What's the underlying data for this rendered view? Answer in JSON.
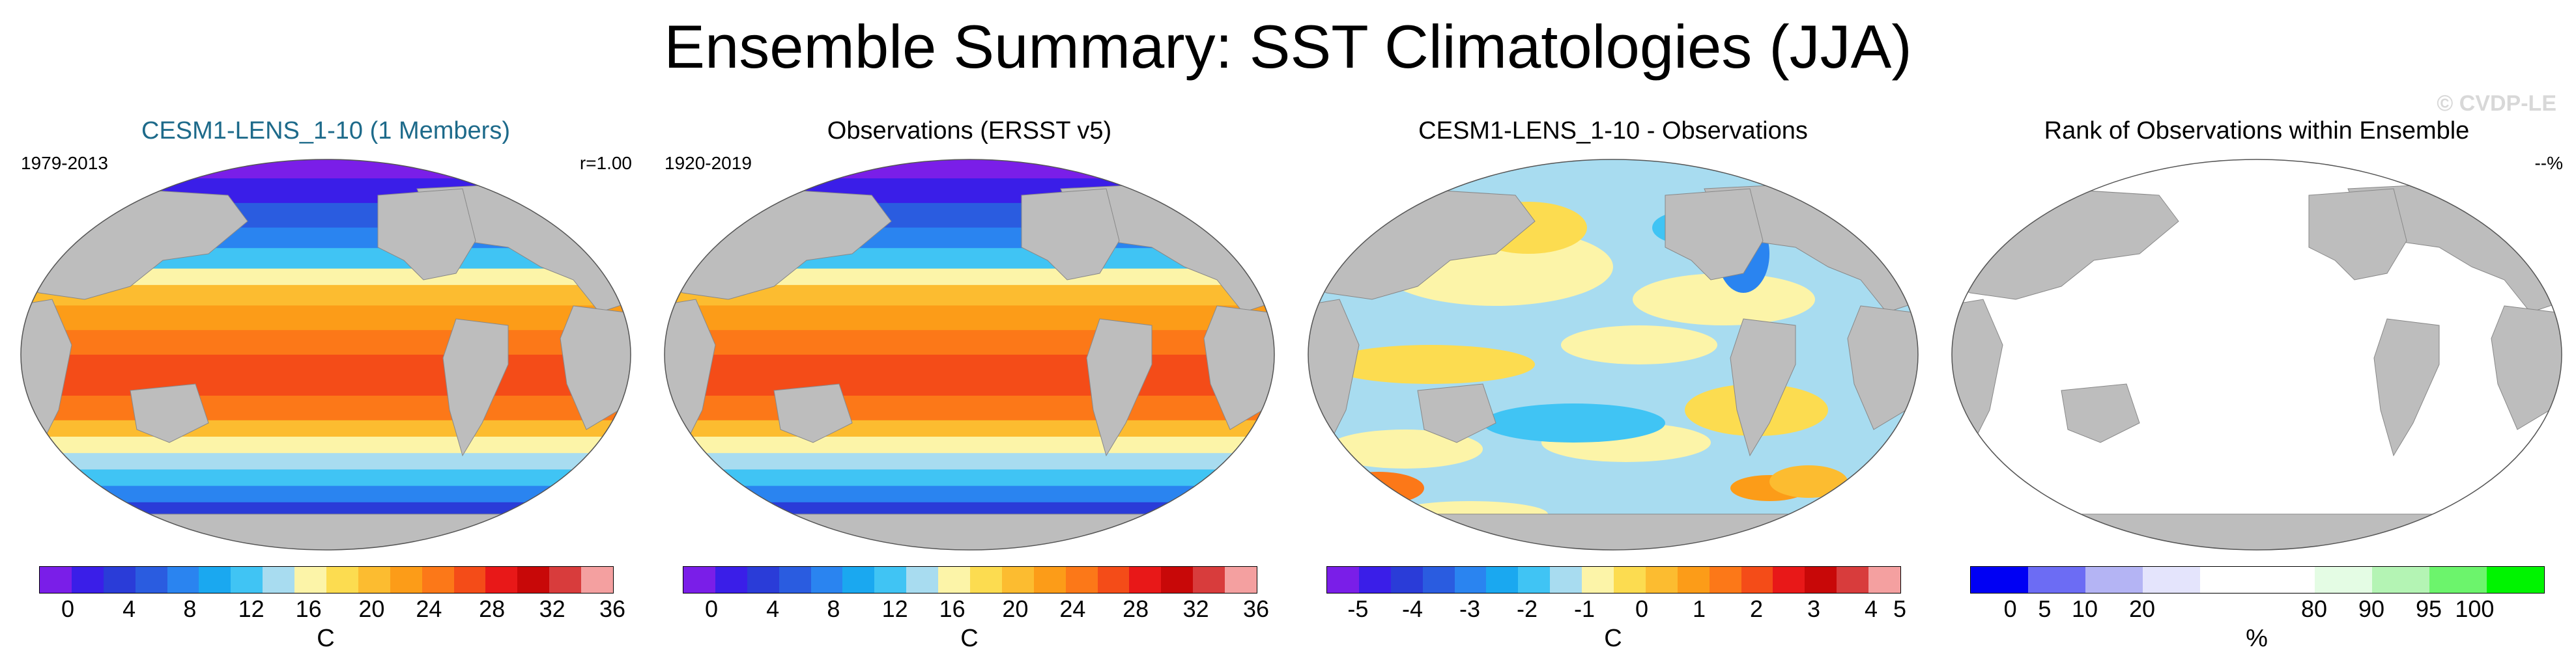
{
  "title": "Ensemble Summary: SST Climatologies (JJA)",
  "watermark": "© CVDP-LE",
  "panels": [
    {
      "title": "CESM1-LENS_1-10 (1 Members)",
      "left_note": "1979-2013",
      "right_note": "r=1.00",
      "unit": "C",
      "map_type": "sst",
      "colorbar": [
        "#7a1ee8",
        "#3a1ee8",
        "#2a3cd8",
        "#2a5ce0",
        "#2a84f0",
        "#1aa8f0",
        "#40c4f4",
        "#a8dcf0",
        "#fcf4a8",
        "#fcdc50",
        "#fcbc30",
        "#fc9c18",
        "#fc7818",
        "#f44c18",
        "#e81818",
        "#c80808",
        "#d83c3c",
        "#f4a0a0"
      ],
      "ticks": [
        "0",
        "4",
        "8",
        "12",
        "16",
        "20",
        "24",
        "28",
        "32",
        "36"
      ]
    },
    {
      "title": "Observations (ERSST v5)",
      "left_note": "1920-2019",
      "right_note": "",
      "unit": "C",
      "map_type": "sst",
      "colorbar": [
        "#7a1ee8",
        "#3a1ee8",
        "#2a3cd8",
        "#2a5ce0",
        "#2a84f0",
        "#1aa8f0",
        "#40c4f4",
        "#a8dcf0",
        "#fcf4a8",
        "#fcdc50",
        "#fcbc30",
        "#fc9c18",
        "#fc7818",
        "#f44c18",
        "#e81818",
        "#c80808",
        "#d83c3c",
        "#f4a0a0"
      ],
      "ticks": [
        "0",
        "4",
        "8",
        "12",
        "16",
        "20",
        "24",
        "28",
        "32",
        "36"
      ]
    },
    {
      "title": "CESM1-LENS_1-10 - Observations",
      "left_note": "",
      "right_note": "",
      "unit": "C",
      "map_type": "diff",
      "colorbar": [
        "#7a1ee8",
        "#3a1ee8",
        "#2a3cd8",
        "#2a5ce0",
        "#2a84f0",
        "#1aa8f0",
        "#40c4f4",
        "#a8dcf0",
        "#fcf4a8",
        "#fcdc50",
        "#fcbc30",
        "#fc9c18",
        "#fc7818",
        "#f44c18",
        "#e81818",
        "#c80808",
        "#d83c3c",
        "#f4a0a0"
      ],
      "ticks": [
        "-5",
        "-4",
        "-3",
        "-2",
        "-1",
        "0",
        "1",
        "2",
        "3",
        "4",
        "5"
      ]
    },
    {
      "title": "Rank of Observations within Ensemble",
      "left_note": "",
      "right_note": "--%",
      "unit": "%",
      "map_type": "blank",
      "colorbar": [
        "#0000f4",
        "#6c6cf4",
        "#b4b4f4",
        "#e4e4fc",
        "#ffffff",
        "#ffffff",
        "#e4fce4",
        "#b4f4b4",
        "#6cf46c",
        "#00f400"
      ],
      "ticks": [
        "0",
        "5",
        "10",
        "20",
        "80",
        "90",
        "95",
        "100"
      ]
    }
  ]
}
